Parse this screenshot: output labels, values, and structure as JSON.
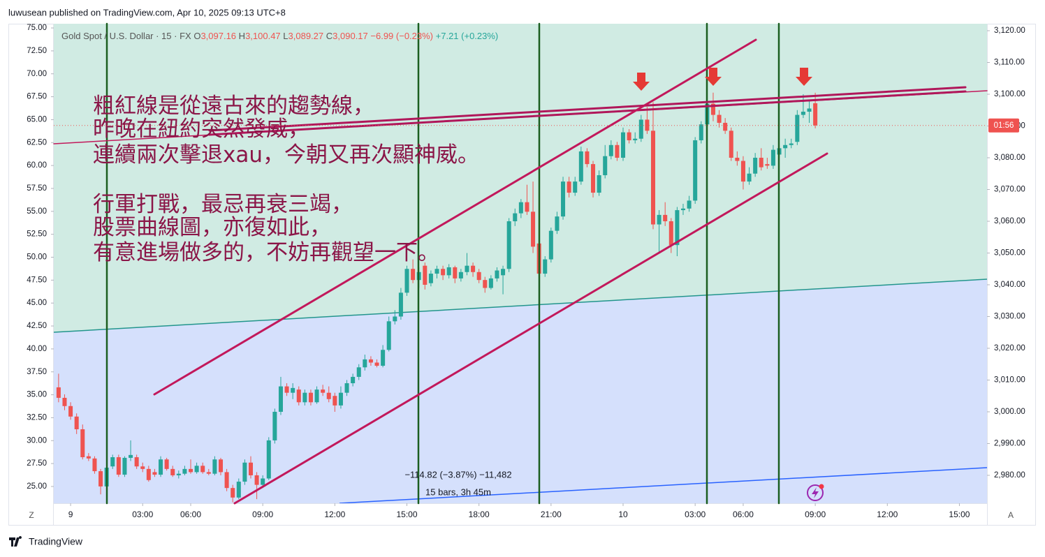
{
  "header": {
    "byline": "luwusean published on TradingView.com, Apr 10, 2025 09:13 UTC+8",
    "brand": "TradingView",
    "left_button": "Z",
    "right_button": "A"
  },
  "annotation": {
    "lines": [
      "粗紅線是從遠古來的趨勢線，",
      "昨晚在紐約突然發威，",
      "連續兩次擊退xau，今朝又再次顯神威。",
      "行軍打戰，最忌再衰三竭，",
      "股票曲線圖，亦復如此，",
      "有意進場做多的，不妨再觀望一下。"
    ]
  },
  "measure": {
    "change": "−114.82 (−3.87%) −11,482",
    "span": "15 bars, 3h 45m"
  },
  "price_tag": "01:56",
  "chart_data": {
    "type": "candlestick",
    "title": "Gold Spot / U.S. Dollar · 15 · FX",
    "ohlc": [
      {
        "label": "O",
        "value": "3,097.16"
      },
      {
        "label": "H",
        "value": "3,100.47"
      },
      {
        "label": "L",
        "value": "3,089.27"
      },
      {
        "label": "C",
        "value": "3,090.17"
      }
    ],
    "change": "−6.99 (−0.23%)",
    "change2": "+7.21 (+0.23%)",
    "up_color": "#26a69a",
    "down_color": "#ef5350",
    "x": [
      -2,
      -1,
      0,
      1,
      2,
      3,
      4,
      5,
      6,
      7,
      8,
      9,
      10,
      11,
      12,
      13,
      14,
      15,
      16,
      17,
      18,
      19,
      20,
      21,
      22,
      23,
      24,
      25,
      26,
      27,
      28,
      29,
      30,
      31,
      32,
      33,
      34,
      35,
      36,
      37,
      38,
      39,
      40,
      41,
      42,
      43,
      44,
      45,
      46,
      47,
      48,
      49,
      50,
      51,
      52,
      53,
      54,
      55,
      56,
      57,
      58,
      59,
      60,
      61,
      62,
      63,
      64,
      65,
      66,
      67,
      68,
      69,
      70,
      71,
      72,
      73,
      74,
      75,
      76,
      77,
      78,
      79,
      80,
      81,
      82,
      83,
      84,
      85,
      86,
      87,
      88,
      89,
      90,
      91,
      92,
      93,
      94,
      95,
      96,
      97,
      98,
      99,
      100,
      101,
      102,
      103,
      104,
      105,
      106,
      107,
      108,
      109,
      110,
      111,
      112,
      113,
      114,
      115,
      116,
      117,
      118,
      119,
      120,
      121,
      122,
      123,
      124
    ],
    "open": [
      3007.7,
      3004.4,
      3001.8,
      2998.5,
      2994.5,
      2986,
      2985.3,
      2981.3,
      2976.5,
      2982.8,
      2985.7,
      2980.2,
      2985.5,
      2985.7,
      2982.8,
      2982,
      2981,
      2980.2,
      2985,
      2982,
      2980,
      2980.5,
      2982,
      2981,
      2983,
      2981,
      2980.5,
      2985,
      2981,
      2976,
      2973,
      2978,
      2984,
      2980,
      2977,
      2979,
      2991,
      3000,
      3008,
      3006,
      3007,
      3003,
      3006,
      3003,
      3007,
      3006,
      3005,
      3002,
      3006,
      3009,
      3011,
      3014,
      3016.5,
      3015.5,
      3014.5,
      3019.5,
      3028.5,
      3030,
      3037.5,
      3045,
      3041.5,
      3046,
      3040.5,
      3043.5,
      3045,
      3043,
      3045.5,
      3042,
      3044,
      3046,
      3044,
      3041.5,
      3039,
      3042,
      3043,
      3045,
      3060,
      3062.5,
      3066,
      3063,
      3053,
      3043.5,
      3048,
      3057,
      3061.5,
      3072.5,
      3069,
      3072.5,
      3082,
      3078,
      3069,
      3074.5,
      3080.5,
      3084,
      3080,
      3088,
      3085.5,
      3086,
      3092,
      3088.5,
      3059,
      3062,
      3060,
      3052.5,
      3063.5,
      3064,
      3066.5,
      3085.5,
      3090.5,
      3097,
      3093.5,
      3091,
      3088.5,
      3080,
      3079,
      3072.5,
      3075,
      3080,
      3078,
      3077.5,
      3081,
      3083,
      3084,
      3085,
      3093.5,
      3094.5,
      3097.16
    ],
    "high": [
      3012,
      3005.5,
      3003,
      2999.5,
      2996,
      2987,
      2986,
      2982,
      2983,
      2986.5,
      2986.5,
      2986,
      2991,
      2986.5,
      2984,
      2983,
      2982,
      2986,
      2985.5,
      2983,
      2981.5,
      2983,
      2985,
      2984,
      2984,
      2982,
      2986,
      2985.5,
      2982,
      2977,
      2979,
      2985,
      2986,
      2981,
      2980,
      2992,
      3001,
      3011,
      3009,
      3009,
      3008,
      3007,
      3007,
      3008,
      3008.5,
      3008,
      3006,
      3008,
      3010,
      3012,
      3015,
      3018,
      3017.5,
      3016.5,
      3021,
      3030,
      3032,
      3039,
      3046,
      3048,
      3045.5,
      3047,
      3044.5,
      3046,
      3046,
      3046.5,
      3046,
      3045,
      3050,
      3047,
      3045,
      3042.5,
      3043,
      3045.5,
      3046,
      3061,
      3064,
      3067,
      3071.5,
      3072.5,
      3054,
      3049,
      3058,
      3063,
      3074,
      3074,
      3074,
      3083.5,
      3083,
      3079,
      3076,
      3084,
      3085.5,
      3085,
      3089.5,
      3089,
      3088,
      3093.5,
      3096,
      3097.5,
      3063.5,
      3066,
      3061,
      3064.5,
      3065.5,
      3068,
      3086.5,
      3091.5,
      3099.5,
      3100.5,
      3095,
      3092.5,
      3089.5,
      3082,
      3080.5,
      3077,
      3081.5,
      3083,
      3080,
      3084,
      3084,
      3086,
      3086,
      3095,
      3100,
      3098,
      3100.47
    ],
    "low": [
      3003,
      3000.5,
      2997.5,
      2993,
      2985,
      2984.5,
      2980.5,
      2974,
      2975.5,
      2982,
      2979.5,
      2979.5,
      2984.5,
      2982,
      2981,
      2978,
      2979.5,
      2979.5,
      2981.5,
      2979.5,
      2979,
      2980,
      2980.5,
      2980.5,
      2980.5,
      2980,
      2980,
      2980,
      2975,
      2971.5,
      2972.5,
      2977,
      2979,
      2972.5,
      2976,
      2978.5,
      2990,
      2999,
      3005,
      3004,
      3002,
      3002,
      3002,
      3002.5,
      3005,
      3003,
      3000,
      3001,
      3005,
      3008,
      3010,
      3013,
      3014.5,
      3014,
      3014,
      3019,
      3027.5,
      3029,
      3036.5,
      3040.5,
      3039,
      3038.5,
      3039.5,
      3042,
      3041.5,
      3042,
      3040.5,
      3041,
      3043,
      3042.5,
      3040.5,
      3037.5,
      3038.5,
      3041,
      3037,
      3044,
      3058.5,
      3061,
      3062,
      3050,
      3042,
      3042.5,
      3047,
      3056,
      3060.5,
      3067.5,
      3068,
      3071.5,
      3077,
      3067.5,
      3068,
      3073.5,
      3079.5,
      3079,
      3079,
      3084.5,
      3084.5,
      3085,
      3087.5,
      3057.5,
      3050,
      3058.5,
      3050,
      3049,
      3062,
      3063,
      3065.5,
      3084.5,
      3089.5,
      3091.5,
      3089.5,
      3087.5,
      3079,
      3077.5,
      3070,
      3071.5,
      3074,
      3076,
      3076.5,
      3076.5,
      3080,
      3080,
      3083,
      3084,
      3092.5,
      3091,
      3089.27
    ],
    "close": [
      3004.4,
      3001.8,
      2998.5,
      2994.5,
      2985.7,
      2985.3,
      2981.3,
      2976.5,
      2982.4,
      2985.7,
      2980.2,
      2985.5,
      2986.4,
      2982.8,
      2982,
      2978.5,
      2980.2,
      2985,
      2982,
      2980,
      2980.5,
      2982,
      2981,
      2983,
      2981,
      2980.5,
      2985,
      2981,
      2976,
      2973,
      2978,
      2984,
      2980,
      2977,
      2979,
      2991,
      3000,
      3008,
      3006,
      3007.5,
      3003,
      3006,
      3003,
      3007,
      3006,
      3004,
      3002,
      3006,
      3009,
      3011,
      3014,
      3016.5,
      3015.5,
      3014.5,
      3019.5,
      3028.5,
      3030,
      3037.5,
      3045,
      3041.5,
      3044,
      3040,
      3043.5,
      3045,
      3043,
      3045.5,
      3042,
      3044,
      3046,
      3044,
      3041.5,
      3039,
      3042,
      3044.5,
      3045,
      3060,
      3062.5,
      3066,
      3063,
      3052,
      3043.5,
      3048,
      3057,
      3061.5,
      3072.5,
      3069,
      3072.5,
      3082,
      3078,
      3069,
      3074.5,
      3080.5,
      3084,
      3080,
      3088,
      3085.5,
      3086,
      3092,
      3088.5,
      3059,
      3062,
      3060,
      3052.5,
      3063.5,
      3064,
      3066.5,
      3085.5,
      3090.5,
      3097,
      3093.5,
      3091,
      3088.5,
      3080,
      3079,
      3072.5,
      3075,
      3080,
      3077,
      3077.5,
      3082.5,
      3083,
      3084,
      3084.5,
      3093.5,
      3094.5,
      3095.5,
      3090.17
    ],
    "xlim": [
      -2.8,
      152.6
    ],
    "xticks": [
      {
        "value": 0,
        "label": "9"
      },
      {
        "value": 12,
        "label": "03:00"
      },
      {
        "value": 20,
        "label": "06:00"
      },
      {
        "value": 32,
        "label": "09:00"
      },
      {
        "value": 44,
        "label": "12:00"
      },
      {
        "value": 56,
        "label": "15:00"
      },
      {
        "value": 68,
        "label": "18:00"
      },
      {
        "value": 80,
        "label": "21:00"
      },
      {
        "value": 92,
        "label": "10"
      },
      {
        "value": 104,
        "label": "03:00"
      },
      {
        "value": 112,
        "label": "06:00"
      },
      {
        "value": 124,
        "label": "09:00"
      },
      {
        "value": 136,
        "label": "12:00"
      },
      {
        "value": 148,
        "label": "15:00"
      }
    ],
    "ylim": [
      2971.2,
      3122.2
    ],
    "yticks": [
      {
        "value": 3120,
        "label": "3,120.00"
      },
      {
        "value": 3110,
        "label": "3,110.00"
      },
      {
        "value": 3100,
        "label": "3,100.00"
      },
      {
        "value": 3090,
        "label": "3,090.00"
      },
      {
        "value": 3080,
        "label": "3,080.00"
      },
      {
        "value": 3070,
        "label": "3,070.00"
      },
      {
        "value": 3060,
        "label": "3,060.00"
      },
      {
        "value": 3050,
        "label": "3,050.00"
      },
      {
        "value": 3040,
        "label": "3,040.00"
      },
      {
        "value": 3030,
        "label": "3,030.00"
      },
      {
        "value": 3020,
        "label": "3,020.00"
      },
      {
        "value": 3010,
        "label": "3,010.00"
      },
      {
        "value": 3000,
        "label": "3,000.00"
      },
      {
        "value": 2990,
        "label": "2,990.00"
      },
      {
        "value": 2980,
        "label": "2,980.00"
      }
    ],
    "y2lim": [
      23.17,
      75.46
    ],
    "y2ticks": [
      {
        "value": 75,
        "label": "75.00"
      },
      {
        "value": 72.5,
        "label": "72.50"
      },
      {
        "value": 70,
        "label": "70.00"
      },
      {
        "value": 67.5,
        "label": "67.50"
      },
      {
        "value": 65,
        "label": "65.00"
      },
      {
        "value": 62.5,
        "label": "62.50"
      },
      {
        "value": 60,
        "label": "60.00"
      },
      {
        "value": 57.5,
        "label": "57.50"
      },
      {
        "value": 55,
        "label": "55.00"
      },
      {
        "value": 52.5,
        "label": "52.50"
      },
      {
        "value": 50,
        "label": "50.00"
      },
      {
        "value": 47.5,
        "label": "47.50"
      },
      {
        "value": 45,
        "label": "45.00"
      },
      {
        "value": 42.5,
        "label": "42.50"
      },
      {
        "value": 40,
        "label": "40.00"
      },
      {
        "value": 37.5,
        "label": "37.50"
      },
      {
        "value": 35,
        "label": "35.00"
      },
      {
        "value": 32.5,
        "label": "32.50"
      },
      {
        "value": 30,
        "label": "30.00"
      },
      {
        "value": 27.5,
        "label": "27.50"
      },
      {
        "value": 25,
        "label": "25.00"
      }
    ]
  }
}
